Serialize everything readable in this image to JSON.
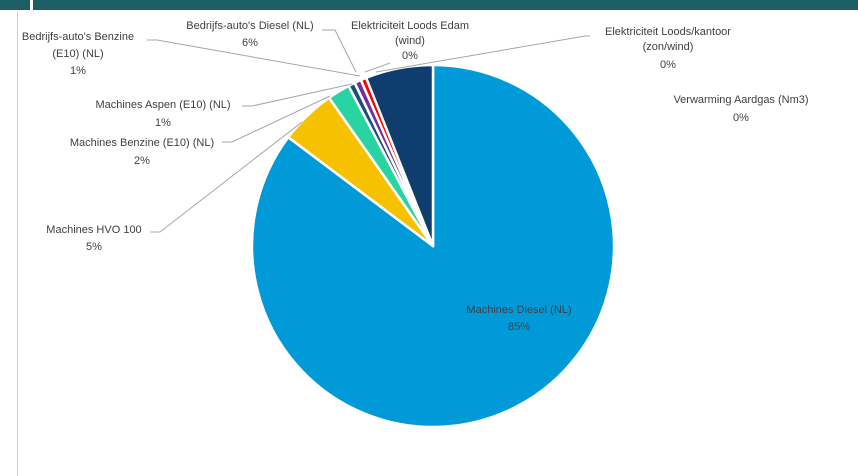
{
  "chart_data": {
    "type": "pie",
    "title": "",
    "slices": [
      {
        "label": "Bedrijfs-auto's Diesel (NL)",
        "value": 6,
        "pct_label": "6%",
        "color": "#0e3d6e"
      },
      {
        "label": "Elektriciteit Loods Edam (wind)",
        "value": 0,
        "pct_label": "0%",
        "color": "#7f7f7f"
      },
      {
        "label": "Elektriciteit Loods/kantoor (zon/wind)",
        "value": 0,
        "pct_label": "0%",
        "color": "#f4b183"
      },
      {
        "label": "Verwarming Aardgas (Nm3)",
        "value": 0,
        "pct_label": "0%",
        "color": "#70ad47"
      },
      {
        "label": "Machines Diesel (NL)",
        "value": 85,
        "pct_label": "85%",
        "color": "#009ad9"
      },
      {
        "label": "Machines HVO 100",
        "value": 5,
        "pct_label": "5%",
        "color": "#f6c200"
      },
      {
        "label": "Machines Benzine (E10) (NL)",
        "value": 2,
        "pct_label": "2%",
        "color": "#29d3a2"
      },
      {
        "label": "Machines Aspen (E10) (NL)",
        "value": 0.6,
        "pct_label": "1%",
        "color": "#1f4e79"
      },
      {
        "label": "Bedrijfs-auto's Benzine (E10) (NL)",
        "value": 0.6,
        "pct_label": "1%",
        "color": "#7030a0"
      },
      {
        "label": "",
        "value": 0.5,
        "pct_label": "",
        "color": "#ff0000"
      }
    ],
    "labels_text": {
      "diesel_cars": [
        "Bedrijfs-auto's Diesel (NL)",
        "6%"
      ],
      "elec_edam": [
        "Elektriciteit Loods Edam",
        "(wind)",
        "0%"
      ],
      "elec_kantoor": [
        "Elektriciteit Loods/kantoor",
        "(zon/wind)",
        "0%"
      ],
      "gas": [
        "Verwarming Aardgas (Nm3)",
        "0%"
      ],
      "mach_diesel": [
        "Machines Diesel (NL)",
        "85%"
      ],
      "hvo": [
        "Machines HVO 100",
        "5%"
      ],
      "mach_benzine": [
        "Machines Benzine (E10) (NL)",
        "2%"
      ],
      "aspen": [
        "Machines Aspen (E10) (NL)",
        "1%"
      ],
      "benz_cars": [
        "Bedrijfs-auto's Benzine",
        "(E10) (NL)",
        "1%"
      ]
    }
  }
}
